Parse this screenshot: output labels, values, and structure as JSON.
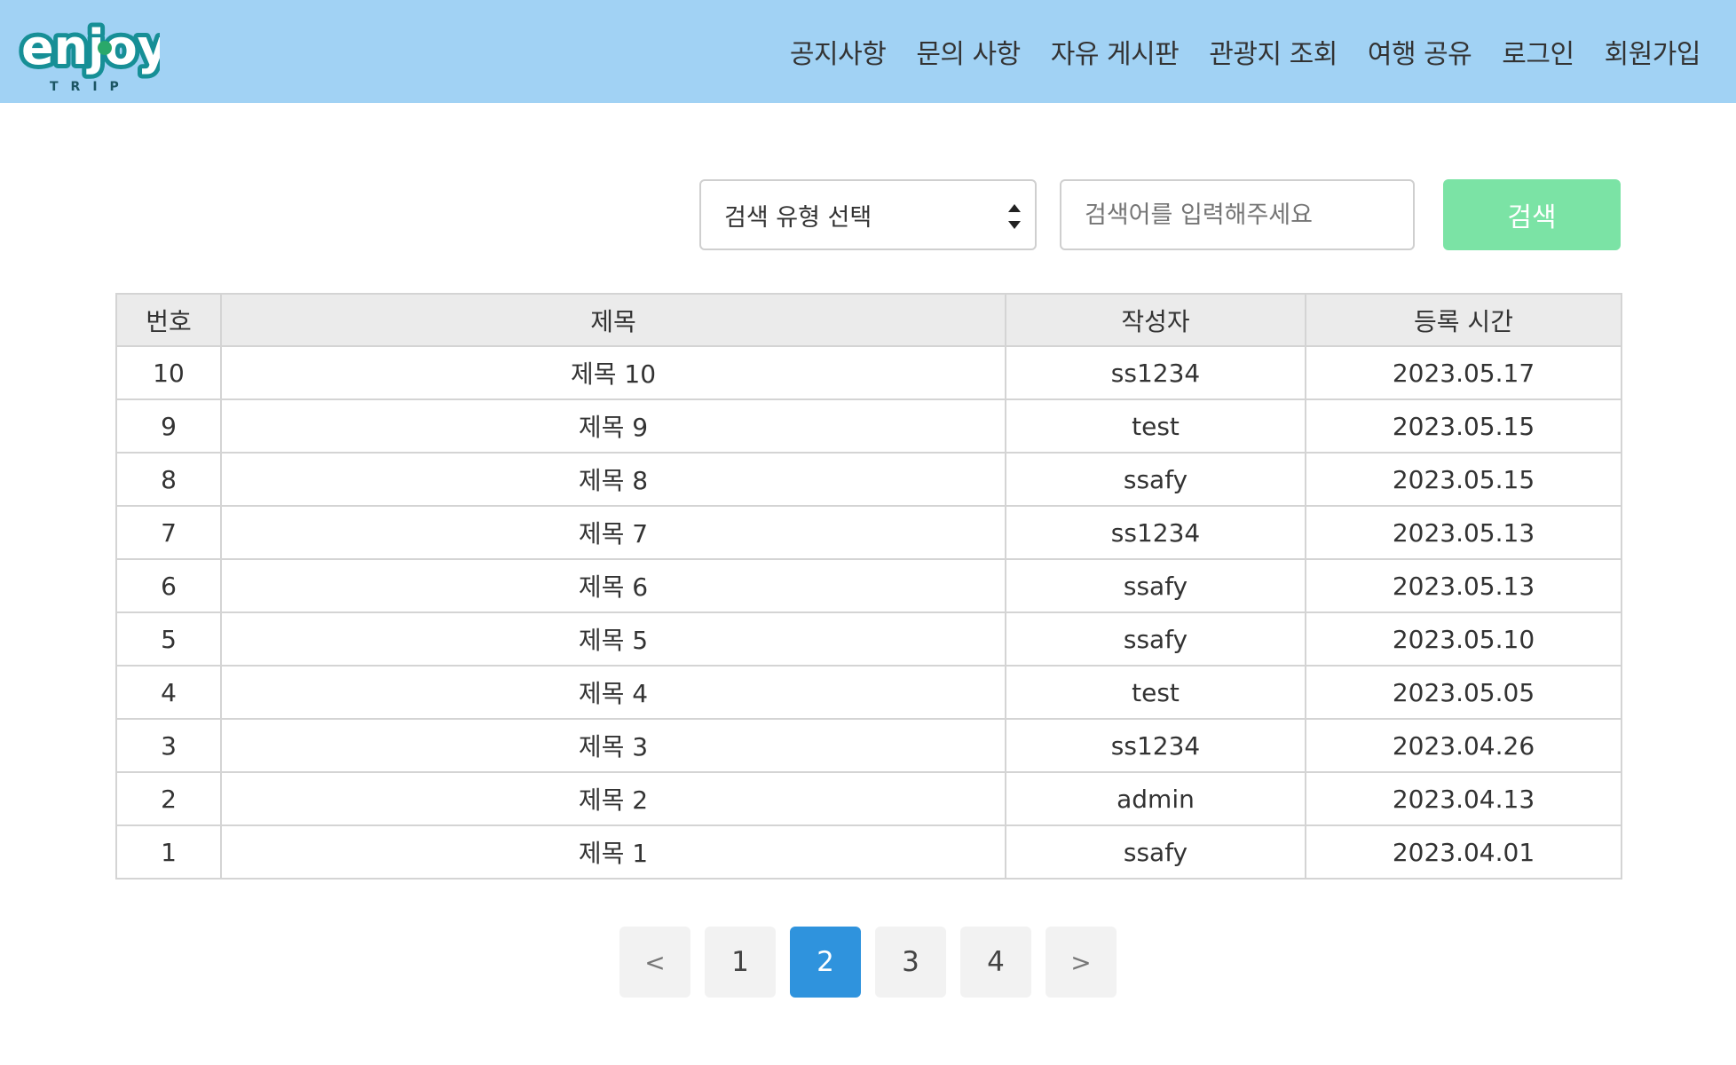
{
  "logo": {
    "text": "enjoy",
    "subtext": "TRIP"
  },
  "nav": {
    "items": [
      {
        "label": "공지사항"
      },
      {
        "label": "문의 사항"
      },
      {
        "label": "자유 게시판"
      },
      {
        "label": "관광지 조회"
      },
      {
        "label": "여행 공유"
      },
      {
        "label": "로그인"
      },
      {
        "label": "회원가입"
      }
    ]
  },
  "search": {
    "select_selected": "검색 유형 선택",
    "input_placeholder": "검색어를 입력해주세요",
    "input_value": "",
    "button_label": "검색"
  },
  "table": {
    "headers": [
      "번호",
      "제목",
      "작성자",
      "등록 시간"
    ],
    "rows": [
      [
        "10",
        "제목 10",
        "ss1234",
        "2023.05.17"
      ],
      [
        "9",
        "제목 9",
        "test",
        "2023.05.15"
      ],
      [
        "8",
        "제목 8",
        "ssafy",
        "2023.05.15"
      ],
      [
        "7",
        "제목 7",
        "ss1234",
        "2023.05.13"
      ],
      [
        "6",
        "제목 6",
        "ssafy",
        "2023.05.13"
      ],
      [
        "5",
        "제목 5",
        "ssafy",
        "2023.05.10"
      ],
      [
        "4",
        "제목 4",
        "test",
        "2023.05.05"
      ],
      [
        "3",
        "제목 3",
        "ss1234",
        "2023.04.26"
      ],
      [
        "2",
        "제목 2",
        "admin",
        "2023.04.13"
      ],
      [
        "1",
        "제목 1",
        "ssafy",
        "2023.04.01"
      ]
    ]
  },
  "pagination": {
    "prev_label": "<",
    "next_label": ">",
    "pages": [
      "1",
      "2",
      "3",
      "4"
    ],
    "current": "2"
  },
  "colors": {
    "navbar_bg": "#a1d2f4",
    "search_button": "#7be3a5",
    "active_page": "#2f93dd"
  }
}
